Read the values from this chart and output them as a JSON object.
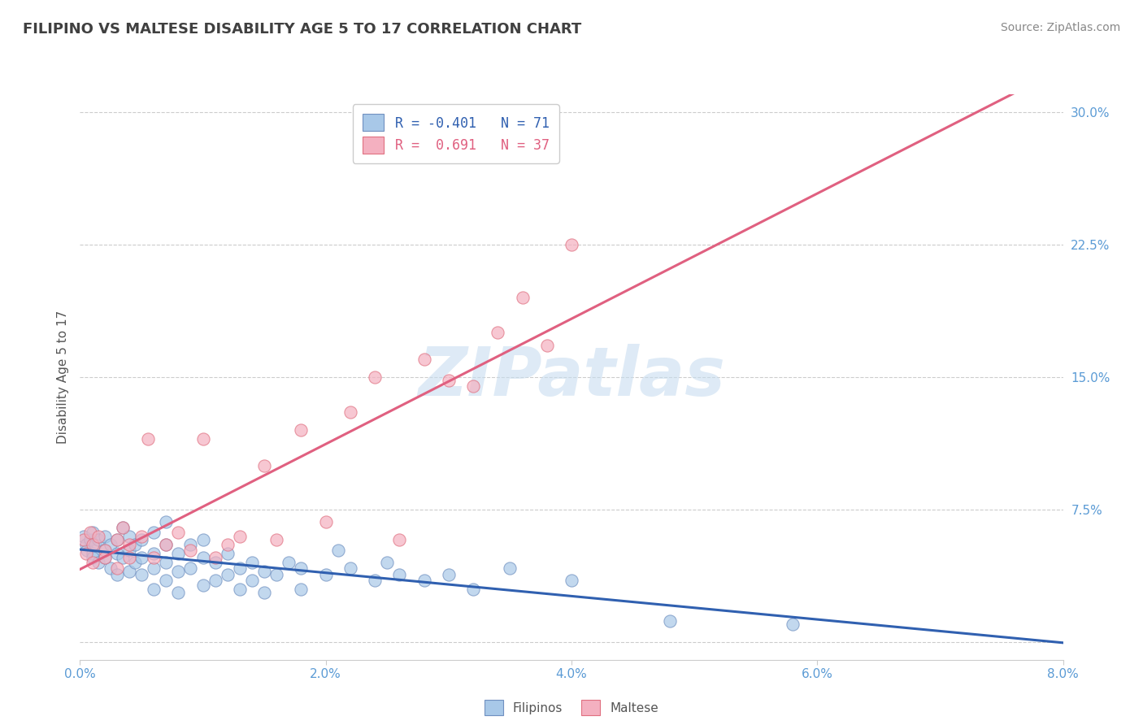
{
  "title": "FILIPINO VS MALTESE DISABILITY AGE 5 TO 17 CORRELATION CHART",
  "source": "Source: ZipAtlas.com",
  "ylabel": "Disability Age 5 to 17",
  "xlim": [
    0.0,
    0.08
  ],
  "ylim": [
    -0.01,
    0.31
  ],
  "xticks": [
    0.0,
    0.02,
    0.04,
    0.06,
    0.08
  ],
  "xtick_labels": [
    "0.0%",
    "2.0%",
    "4.0%",
    "6.0%",
    "8.0%"
  ],
  "yticks": [
    0.0,
    0.075,
    0.15,
    0.225,
    0.3
  ],
  "ytick_labels": [
    "",
    "7.5%",
    "15.0%",
    "22.5%",
    "30.0%"
  ],
  "filipino_R": -0.401,
  "filipino_N": 71,
  "maltese_R": 0.691,
  "maltese_N": 37,
  "filipino_color": "#a8c8e8",
  "maltese_color": "#f4b0c0",
  "filipino_edge_color": "#7090c0",
  "maltese_edge_color": "#e07080",
  "filipino_line_color": "#3060b0",
  "maltese_line_color": "#e06080",
  "title_color": "#404040",
  "axis_color": "#5b9bd5",
  "legend_label_1": "Filipinos",
  "legend_label_2": "Maltese",
  "filipino_points": [
    [
      0.0003,
      0.06
    ],
    [
      0.0005,
      0.055
    ],
    [
      0.0006,
      0.052
    ],
    [
      0.0008,
      0.058
    ],
    [
      0.001,
      0.062
    ],
    [
      0.001,
      0.05
    ],
    [
      0.001,
      0.048
    ],
    [
      0.0012,
      0.055
    ],
    [
      0.0015,
      0.058
    ],
    [
      0.0015,
      0.045
    ],
    [
      0.002,
      0.06
    ],
    [
      0.002,
      0.052
    ],
    [
      0.002,
      0.048
    ],
    [
      0.0025,
      0.055
    ],
    [
      0.0025,
      0.042
    ],
    [
      0.003,
      0.058
    ],
    [
      0.003,
      0.05
    ],
    [
      0.003,
      0.038
    ],
    [
      0.0035,
      0.065
    ],
    [
      0.0035,
      0.048
    ],
    [
      0.004,
      0.06
    ],
    [
      0.004,
      0.052
    ],
    [
      0.004,
      0.04
    ],
    [
      0.0045,
      0.055
    ],
    [
      0.0045,
      0.045
    ],
    [
      0.005,
      0.058
    ],
    [
      0.005,
      0.048
    ],
    [
      0.005,
      0.038
    ],
    [
      0.006,
      0.062
    ],
    [
      0.006,
      0.05
    ],
    [
      0.006,
      0.042
    ],
    [
      0.006,
      0.03
    ],
    [
      0.007,
      0.068
    ],
    [
      0.007,
      0.055
    ],
    [
      0.007,
      0.045
    ],
    [
      0.007,
      0.035
    ],
    [
      0.008,
      0.05
    ],
    [
      0.008,
      0.04
    ],
    [
      0.008,
      0.028
    ],
    [
      0.009,
      0.055
    ],
    [
      0.009,
      0.042
    ],
    [
      0.01,
      0.058
    ],
    [
      0.01,
      0.048
    ],
    [
      0.01,
      0.032
    ],
    [
      0.011,
      0.045
    ],
    [
      0.011,
      0.035
    ],
    [
      0.012,
      0.05
    ],
    [
      0.012,
      0.038
    ],
    [
      0.013,
      0.042
    ],
    [
      0.013,
      0.03
    ],
    [
      0.014,
      0.045
    ],
    [
      0.014,
      0.035
    ],
    [
      0.015,
      0.04
    ],
    [
      0.015,
      0.028
    ],
    [
      0.016,
      0.038
    ],
    [
      0.017,
      0.045
    ],
    [
      0.018,
      0.042
    ],
    [
      0.018,
      0.03
    ],
    [
      0.02,
      0.038
    ],
    [
      0.021,
      0.052
    ],
    [
      0.022,
      0.042
    ],
    [
      0.024,
      0.035
    ],
    [
      0.025,
      0.045
    ],
    [
      0.026,
      0.038
    ],
    [
      0.028,
      0.035
    ],
    [
      0.03,
      0.038
    ],
    [
      0.032,
      0.03
    ],
    [
      0.035,
      0.042
    ],
    [
      0.04,
      0.035
    ],
    [
      0.048,
      0.012
    ],
    [
      0.058,
      0.01
    ]
  ],
  "maltese_points": [
    [
      0.0003,
      0.058
    ],
    [
      0.0005,
      0.05
    ],
    [
      0.0008,
      0.062
    ],
    [
      0.001,
      0.055
    ],
    [
      0.001,
      0.045
    ],
    [
      0.0015,
      0.06
    ],
    [
      0.002,
      0.052
    ],
    [
      0.002,
      0.048
    ],
    [
      0.003,
      0.058
    ],
    [
      0.003,
      0.042
    ],
    [
      0.0035,
      0.065
    ],
    [
      0.004,
      0.055
    ],
    [
      0.004,
      0.048
    ],
    [
      0.005,
      0.06
    ],
    [
      0.0055,
      0.115
    ],
    [
      0.006,
      0.048
    ],
    [
      0.007,
      0.055
    ],
    [
      0.008,
      0.062
    ],
    [
      0.009,
      0.052
    ],
    [
      0.01,
      0.115
    ],
    [
      0.011,
      0.048
    ],
    [
      0.012,
      0.055
    ],
    [
      0.013,
      0.06
    ],
    [
      0.015,
      0.1
    ],
    [
      0.016,
      0.058
    ],
    [
      0.018,
      0.12
    ],
    [
      0.02,
      0.068
    ],
    [
      0.022,
      0.13
    ],
    [
      0.024,
      0.15
    ],
    [
      0.026,
      0.058
    ],
    [
      0.028,
      0.16
    ],
    [
      0.03,
      0.148
    ],
    [
      0.032,
      0.145
    ],
    [
      0.034,
      0.175
    ],
    [
      0.036,
      0.195
    ],
    [
      0.038,
      0.168
    ],
    [
      0.04,
      0.225
    ]
  ]
}
